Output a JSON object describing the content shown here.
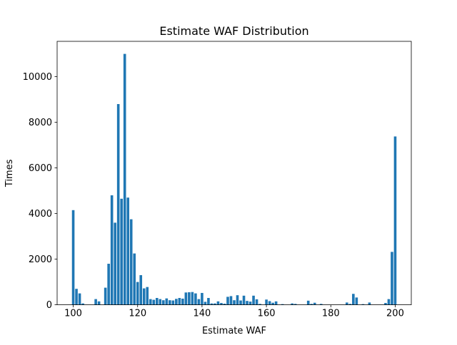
{
  "chart_data": {
    "type": "bar",
    "title": "Estimate WAF Distribution",
    "xlabel": "Estimate WAF",
    "ylabel": "Times",
    "xlim": [
      95,
      205
    ],
    "ylim": [
      0,
      11550
    ],
    "x_ticks": [
      100,
      120,
      140,
      160,
      180,
      200
    ],
    "y_ticks": [
      0,
      2000,
      4000,
      6000,
      8000,
      10000
    ],
    "bar_color": "#1f77b4",
    "grid": false,
    "legend": "none",
    "x": [
      100,
      101,
      102,
      103,
      107,
      108,
      110,
      111,
      112,
      113,
      114,
      115,
      116,
      117,
      118,
      119,
      120,
      121,
      122,
      123,
      124,
      125,
      126,
      127,
      128,
      129,
      130,
      131,
      132,
      133,
      134,
      135,
      136,
      137,
      138,
      139,
      140,
      141,
      142,
      143,
      144,
      145,
      146,
      147,
      148,
      149,
      150,
      151,
      152,
      153,
      154,
      155,
      156,
      157,
      158,
      160,
      161,
      162,
      163,
      165,
      168,
      169,
      173,
      174,
      175,
      177,
      185,
      186,
      187,
      188,
      190,
      192,
      197,
      198,
      199,
      200
    ],
    "values": [
      4150,
      700,
      500,
      60,
      250,
      150,
      750,
      1800,
      4800,
      3600,
      8800,
      4650,
      11000,
      4700,
      3750,
      2250,
      1000,
      1300,
      720,
      780,
      250,
      220,
      300,
      250,
      200,
      280,
      200,
      190,
      260,
      300,
      270,
      540,
      550,
      560,
      500,
      250,
      520,
      130,
      300,
      60,
      60,
      150,
      80,
      50,
      350,
      380,
      200,
      420,
      190,
      400,
      170,
      140,
      400,
      240,
      40,
      230,
      160,
      90,
      150,
      30,
      60,
      40,
      180,
      40,
      90,
      40,
      100,
      40,
      480,
      320,
      30,
      100,
      80,
      250,
      2320,
      7380
    ]
  }
}
